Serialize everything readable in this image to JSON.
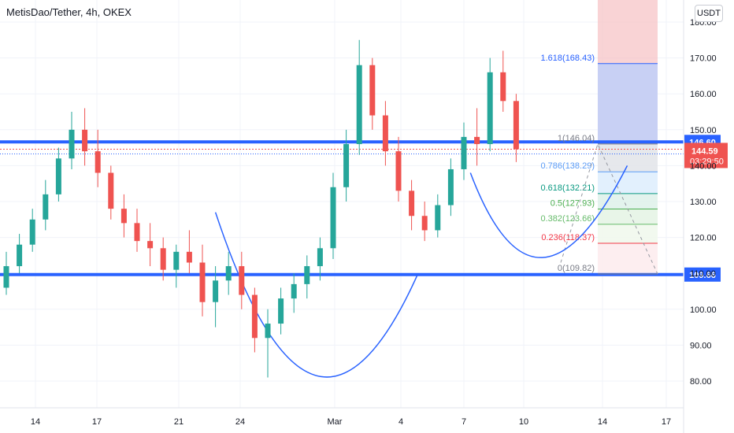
{
  "header": {
    "title": "MetisDao/Tether, 4h, OKEX",
    "currency": "USDT"
  },
  "colors": {
    "up": "#26a69a",
    "down": "#ef5350",
    "level_line": "#2962ff",
    "arc": "#2962ff"
  },
  "chart_data": {
    "type": "candlestick",
    "x_ticks": [
      "14",
      "17",
      "21",
      "24",
      "Mar",
      "4",
      "7",
      "10",
      "14",
      "17"
    ],
    "y_ticks": [
      "180.00",
      "170.00",
      "160.00",
      "150.00",
      "140.00",
      "130.00",
      "120.00",
      "110.00",
      "100.00",
      "90.00",
      "80.00"
    ],
    "ylim": [
      78,
      184
    ],
    "horizontal_levels": [
      {
        "value": 146.6,
        "label": "146.60"
      },
      {
        "value": 109.66,
        "label": "109.66"
      }
    ],
    "last_price": {
      "value": 144.59,
      "label": "144.59",
      "countdown": "03:29:50"
    },
    "fibonacci": [
      {
        "ratio": "1.618",
        "price": 168.43,
        "label": "1.618(168.43)",
        "color": "#2962ff"
      },
      {
        "ratio": "1",
        "price": 146.04,
        "label": "1(146.04)",
        "color": "#787b86"
      },
      {
        "ratio": "0.786",
        "price": 138.29,
        "label": "0.786(138.29)",
        "color": "#5b9cf6"
      },
      {
        "ratio": "0.618",
        "price": 132.21,
        "label": "0.618(132.21)",
        "color": "#089981"
      },
      {
        "ratio": "0.5",
        "price": 127.93,
        "label": "0.5(127.93)",
        "color": "#4caf50"
      },
      {
        "ratio": "0.382",
        "price": 123.66,
        "label": "0.382(123.66)",
        "color": "#66bb6a"
      },
      {
        "ratio": "0.236",
        "price": 118.37,
        "label": "0.236(118.37)",
        "color": "#f23645"
      },
      {
        "ratio": "0",
        "price": 109.82,
        "label": "0(109.82)",
        "color": "#787b86"
      }
    ],
    "patterns": [
      {
        "name": "cup-arc-left",
        "points": [
          {
            "date_index": 16,
            "price": 127
          },
          {
            "date_index": 23.5,
            "price": 82.5
          },
          {
            "date_index": 31.5,
            "price": 110
          }
        ]
      },
      {
        "name": "cup-arc-right",
        "points": [
          {
            "date_index": 35.5,
            "price": 138
          },
          {
            "date_index": 40.5,
            "price": 115
          },
          {
            "date_index": 47.5,
            "price": 140
          }
        ]
      }
    ],
    "candles": [
      [
        106,
        116,
        104,
        112
      ],
      [
        112,
        121,
        110,
        118
      ],
      [
        118,
        128,
        116,
        125
      ],
      [
        125,
        136,
        122,
        132
      ],
      [
        132,
        145,
        130,
        142
      ],
      [
        142,
        155,
        139,
        150
      ],
      [
        150,
        156,
        140,
        144
      ],
      [
        144,
        150,
        134,
        138
      ],
      [
        138,
        140,
        125,
        128
      ],
      [
        128,
        132,
        120,
        124
      ],
      [
        124,
        128,
        116,
        119
      ],
      [
        119,
        124,
        112,
        117
      ],
      [
        117,
        120,
        108,
        111
      ],
      [
        111,
        118,
        106,
        116
      ],
      [
        116,
        122,
        110,
        113
      ],
      [
        113,
        118,
        98,
        102
      ],
      [
        102,
        112,
        95,
        108
      ],
      [
        108,
        116,
        104,
        112
      ],
      [
        112,
        116,
        100,
        104
      ],
      [
        104,
        106,
        88,
        92
      ],
      [
        92,
        100,
        81,
        96
      ],
      [
        96,
        106,
        93,
        103
      ],
      [
        103,
        110,
        99,
        107
      ],
      [
        107,
        115,
        103,
        112
      ],
      [
        112,
        120,
        108,
        117
      ],
      [
        117,
        138,
        114,
        134
      ],
      [
        134,
        150,
        130,
        146
      ],
      [
        146,
        175,
        143,
        168
      ],
      [
        168,
        170,
        150,
        154
      ],
      [
        154,
        158,
        140,
        144
      ],
      [
        144,
        148,
        130,
        133
      ],
      [
        133,
        136,
        122,
        126
      ],
      [
        126,
        130,
        119,
        122
      ],
      [
        122,
        132,
        120,
        129
      ],
      [
        129,
        142,
        126,
        139
      ],
      [
        139,
        152,
        136,
        148
      ],
      [
        148,
        156,
        140,
        146
      ],
      [
        146,
        170,
        144,
        166
      ],
      [
        166,
        172,
        155,
        158
      ],
      [
        158,
        160,
        141,
        144.59
      ]
    ]
  }
}
